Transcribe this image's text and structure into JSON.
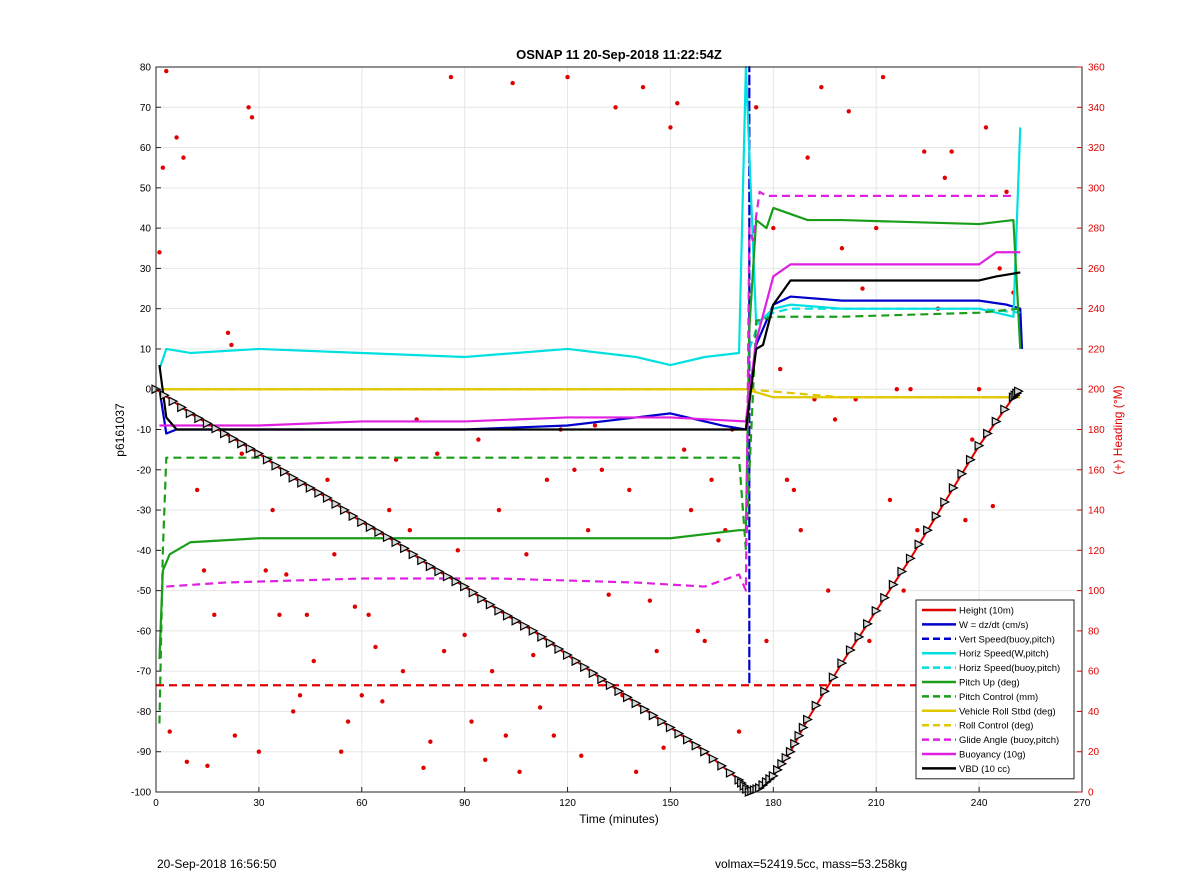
{
  "chart_data": {
    "type": "line",
    "title": "OSNAP 11 20-Sep-2018 11:22:54Z",
    "xlabel": "Time (minutes)",
    "ylabel": "p6161037",
    "ylabel_right": "(+) Heading (°M)",
    "xlim": [
      0,
      270
    ],
    "ylim": [
      -100,
      80
    ],
    "ylim_right": [
      0,
      360
    ],
    "x_ticks": [
      0,
      30,
      60,
      90,
      120,
      150,
      180,
      210,
      240,
      270
    ],
    "y_ticks": [
      -100,
      -90,
      -80,
      -70,
      -60,
      -50,
      -40,
      -30,
      -20,
      -10,
      0,
      10,
      20,
      30,
      40,
      50,
      60,
      70,
      80
    ],
    "y_ticks_right": [
      0,
      20,
      40,
      60,
      80,
      100,
      120,
      140,
      160,
      180,
      200,
      220,
      240,
      260,
      280,
      300,
      320,
      340,
      360
    ],
    "grid": true,
    "legend_position": "bottom-right",
    "series": [
      {
        "name": "Height (10m)",
        "color": "#e00000",
        "style": "solid",
        "marker": "triangle",
        "x": [
          0,
          10,
          20,
          30,
          40,
          50,
          60,
          70,
          80,
          90,
          100,
          110,
          120,
          130,
          140,
          150,
          160,
          170,
          173,
          176,
          180,
          185,
          190,
          200,
          210,
          220,
          230,
          240,
          250,
          252
        ],
        "y": [
          0,
          -6,
          -11,
          -16,
          -22,
          -27,
          -33,
          -38,
          -44,
          -49,
          -55,
          -60,
          -66,
          -72,
          -78,
          -84,
          -90,
          -97,
          -100,
          -99,
          -96,
          -90,
          -82,
          -68,
          -55,
          -42,
          -28,
          -14,
          -2,
          0
        ]
      },
      {
        "name": "W = dz/dt (cm/s)",
        "color": "#0000cc",
        "style": "solid",
        "x": [
          1,
          3,
          6,
          10,
          30,
          60,
          90,
          120,
          150,
          165,
          172,
          175,
          180,
          185,
          200,
          240,
          248,
          252,
          252.5
        ],
        "y": [
          0,
          -11,
          -10,
          -10,
          -10,
          -10,
          -10,
          -9,
          -6,
          -9,
          -10,
          11,
          21,
          23,
          22,
          22,
          21,
          20,
          10
        ]
      },
      {
        "name": "Vert Speed(buoy,pitch)",
        "color": "#0000cc",
        "style": "dashed",
        "x": [
          173,
          173,
          173
        ],
        "y": [
          -73,
          80,
          -73
        ]
      },
      {
        "name": "Horiz Speed(W,pitch)",
        "color": "#00e0e0",
        "style": "solid",
        "x": [
          1,
          3,
          10,
          30,
          60,
          90,
          120,
          140,
          150,
          160,
          170,
          172,
          175,
          180,
          185,
          200,
          240,
          250,
          252
        ],
        "y": [
          5,
          10,
          9,
          10,
          9,
          8,
          10,
          8,
          6,
          8,
          9,
          80,
          16,
          20,
          21,
          20,
          20,
          18,
          65
        ]
      },
      {
        "name": "Horiz Speed(buoy,pitch)",
        "color": "#00e0e0",
        "style": "dashed",
        "x": [
          173,
          176,
          180,
          185,
          200,
          240,
          252
        ],
        "y": [
          10,
          17,
          19,
          20,
          20,
          20,
          19
        ]
      },
      {
        "name": "Pitch Up (deg)",
        "color": "#1a9e1a",
        "style": "solid",
        "x": [
          1,
          2,
          4,
          10,
          30,
          60,
          90,
          120,
          150,
          170,
          172,
          173,
          175,
          178,
          180,
          190,
          200,
          240,
          250,
          252
        ],
        "y": [
          -67,
          -45,
          -41,
          -38,
          -37,
          -37,
          -37,
          -37,
          -37,
          -35,
          -35,
          15,
          42,
          40,
          45,
          42,
          42,
          41,
          42,
          10
        ]
      },
      {
        "name": "Pitch Control (mm)",
        "color": "#1a9e1a",
        "style": "dashed",
        "x": [
          1,
          2,
          3,
          10,
          60,
          120,
          170,
          172,
          175,
          180,
          200,
          240,
          252
        ],
        "y": [
          -83,
          -40,
          -17,
          -17,
          -17,
          -17,
          -17,
          -40,
          17,
          18,
          18,
          19,
          20
        ]
      },
      {
        "name": "Vehicle Roll Stbd (deg)",
        "color": "#e0c800",
        "style": "solid",
        "x": [
          2,
          30,
          60,
          90,
          120,
          150,
          172,
          180,
          210,
          240,
          252
        ],
        "y": [
          0,
          0,
          0,
          0,
          0,
          0,
          0,
          -2,
          -2,
          -2,
          -2
        ]
      },
      {
        "name": "Roll Control (deg)",
        "color": "#e0c800",
        "style": "dashed",
        "x": [
          2,
          60,
          120,
          172,
          200,
          252
        ],
        "y": [
          0,
          0,
          0,
          0,
          -2,
          -2
        ]
      },
      {
        "name": "Glide Angle (buoy,pitch)",
        "color": "#e020e0",
        "style": "dashed",
        "x": [
          3,
          20,
          60,
          100,
          140,
          160,
          170,
          172,
          173,
          174,
          176,
          178,
          180,
          200,
          240,
          250
        ],
        "y": [
          -49,
          -48,
          -47,
          -47,
          -48,
          -49,
          -46,
          -50,
          40,
          37,
          49,
          48,
          48,
          48,
          48,
          48
        ]
      },
      {
        "name": "Buoyancy (10g)",
        "color": "#e020e0",
        "style": "solid",
        "x": [
          1,
          10,
          30,
          60,
          90,
          120,
          150,
          172,
          175,
          180,
          185,
          200,
          240,
          245,
          252
        ],
        "y": [
          -9,
          -9,
          -9,
          -8,
          -8,
          -7,
          -7,
          -8,
          12,
          28,
          31,
          31,
          31,
          34,
          34
        ]
      },
      {
        "name": "VBD (10 cc)",
        "color": "#000000",
        "style": "solid",
        "x": [
          1,
          3,
          6,
          10,
          60,
          120,
          170,
          172,
          175,
          177,
          180,
          185,
          200,
          240,
          245,
          252
        ],
        "y": [
          6,
          -7,
          -10,
          -10,
          -10,
          -10,
          -10,
          -10,
          10,
          11,
          21,
          27,
          27,
          27,
          28,
          29
        ]
      },
      {
        "name": "",
        "color": "#e00000",
        "style": "dashed",
        "x": [
          0,
          252
        ],
        "y": [
          -73.5,
          -73.5
        ]
      }
    ],
    "heading_points": {
      "axis": "right",
      "color": "#e00000",
      "x": [
        1,
        2,
        3,
        4,
        6,
        8,
        9,
        12,
        14,
        15,
        17,
        21,
        22,
        23,
        25,
        27,
        28,
        30,
        32,
        34,
        36,
        38,
        40,
        42,
        44,
        46,
        50,
        52,
        54,
        56,
        58,
        60,
        62,
        64,
        66,
        68,
        70,
        72,
        74,
        76,
        78,
        80,
        82,
        84,
        86,
        88,
        90,
        92,
        94,
        96,
        98,
        100,
        102,
        104,
        106,
        108,
        110,
        112,
        114,
        116,
        118,
        120,
        122,
        124,
        126,
        128,
        130,
        132,
        134,
        136,
        138,
        140,
        142,
        144,
        146,
        148,
        150,
        152,
        154,
        156,
        158,
        160,
        162,
        164,
        166,
        168,
        170,
        175,
        178,
        180,
        182,
        184,
        186,
        188,
        190,
        192,
        194,
        196,
        198,
        200,
        202,
        204,
        206,
        208,
        210,
        212,
        214,
        216,
        218,
        220,
        222,
        224,
        226,
        228,
        230,
        232,
        234,
        236,
        238,
        240,
        242,
        244,
        246,
        248,
        250
      ],
      "y": [
        268,
        310,
        358,
        30,
        325,
        315,
        15,
        150,
        110,
        13,
        88,
        228,
        222,
        28,
        168,
        340,
        335,
        20,
        110,
        140,
        88,
        108,
        40,
        48,
        88,
        65,
        155,
        118,
        20,
        35,
        92,
        48,
        88,
        72,
        45,
        140,
        165,
        60,
        130,
        185,
        12,
        25,
        168,
        70,
        355,
        120,
        78,
        35,
        175,
        16,
        60,
        140,
        28,
        352,
        10,
        118,
        68,
        42,
        155,
        28,
        180,
        355,
        160,
        18,
        130,
        182,
        160,
        98,
        340,
        48,
        150,
        10,
        350,
        95,
        70,
        22,
        330,
        342,
        170,
        140,
        80,
        75,
        155,
        125,
        130,
        180,
        30,
        340,
        75,
        280,
        210,
        155,
        150,
        130,
        315,
        195,
        350,
        100,
        185,
        270,
        338,
        195,
        250,
        75,
        280,
        355,
        145,
        200,
        100,
        200,
        130,
        318,
        45,
        240,
        305,
        318,
        80,
        135,
        175,
        200,
        330,
        142,
        260,
        298,
        248
      ]
    }
  },
  "footer": {
    "left": "20-Sep-2018 16:56:50",
    "right": "volmax=52419.5cc, mass=53.258kg"
  }
}
